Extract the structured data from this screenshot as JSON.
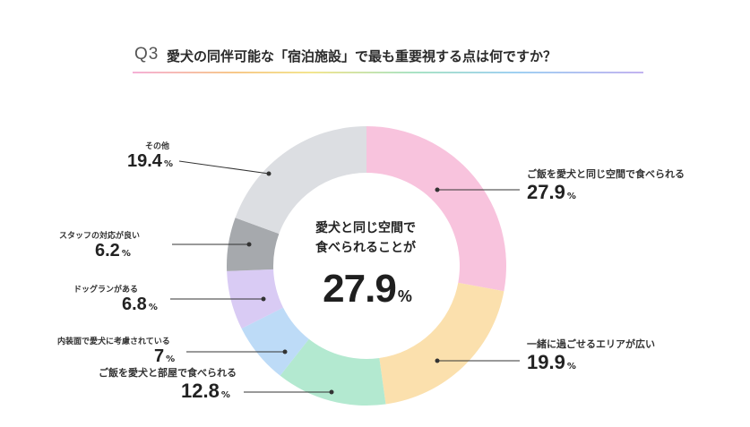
{
  "header": {
    "q_number": "Q3",
    "title": "愛犬の同伴可能な「宿泊施設」で最も重要視する点は何ですか？"
  },
  "center": {
    "line1": "愛犬と同じ空間で",
    "line2": "食べられることが",
    "value": "27.9",
    "unit": "%"
  },
  "chart_data": {
    "type": "pie",
    "categories": [
      "ご飯を愛犬と同じ空間で食べられる",
      "一緒に過ごせるエリアが広い",
      "ご飯を愛犬と部屋で食べられる",
      "内装面で愛犬に考慮されている",
      "ドッグランがある",
      "スタッフの対応が良い",
      "その他"
    ],
    "values": [
      27.9,
      19.9,
      12.8,
      7,
      6.8,
      6.2,
      19.4
    ],
    "value_labels": [
      "27.9",
      "19.9",
      "12.8",
      "7",
      "6.8",
      "6.2",
      "19.4"
    ],
    "unit": "%",
    "colors": [
      "#f8c3dd",
      "#fbe0ad",
      "#b3e9d0",
      "#bddbf7",
      "#d9cbf4",
      "#a6a9ad",
      "#dcdee2"
    ],
    "donut": true,
    "start": "top",
    "direction": "clockwise"
  }
}
